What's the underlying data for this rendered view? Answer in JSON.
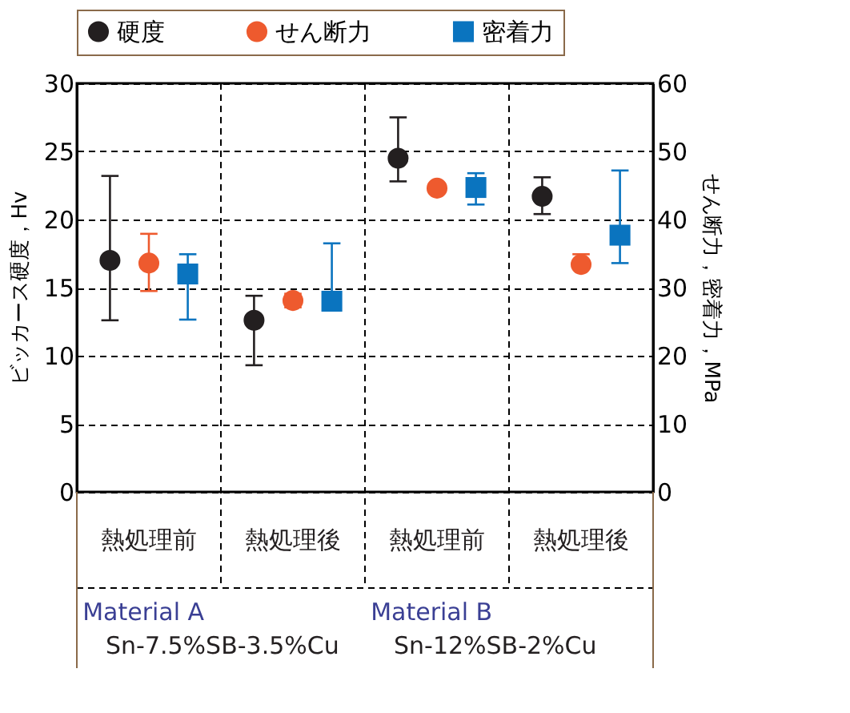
{
  "chart_data": {
    "type": "scatter",
    "categories": [
      "熱処理前",
      "熱処理後",
      "熱処理前",
      "熱処理後"
    ],
    "ylabel": "ビッカース硬度，Hv",
    "y2label": "せん断力，密着力，MPa",
    "ylim": [
      0,
      30
    ],
    "yticks": [
      0,
      5,
      10,
      15,
      20,
      25,
      30
    ],
    "y2lim": [
      0,
      60
    ],
    "y2ticks": [
      0,
      10,
      20,
      30,
      40,
      50,
      60
    ],
    "grid": true,
    "legend": "top",
    "series": [
      {
        "name": "硬度",
        "color": "#231f20",
        "marker": "circle",
        "values": [
          17.0,
          12.6,
          24.5,
          21.7
        ],
        "errors": [
          [
            12.6,
            23.2
          ],
          [
            9.3,
            14.4
          ],
          [
            22.8,
            27.5
          ],
          [
            20.4,
            23.1
          ]
        ]
      },
      {
        "name": "せん断力",
        "color": "#ee5a2e",
        "marker": "circle",
        "axis": "y2",
        "values": [
          33.6,
          28.1,
          44.6,
          33.4
        ],
        "errors": [
          [
            29.5,
            37.9
          ],
          [
            27.1,
            29.1
          ],
          null,
          [
            33.4,
            34.9
          ]
        ]
      },
      {
        "name": "密着力",
        "color": "#0a74bf",
        "marker": "square",
        "axis": "y2",
        "values": [
          32.0,
          28.0,
          44.7,
          37.7
        ],
        "errors": [
          [
            25.3,
            34.9
          ],
          [
            28.0,
            36.5
          ],
          [
            42.2,
            46.8
          ],
          [
            33.6,
            47.2
          ]
        ]
      }
    ],
    "annotations": [
      "Material A",
      "Sn-7.5%SB-3.5%Cu",
      "Material B",
      "Sn-12%SB-2%Cu"
    ]
  }
}
